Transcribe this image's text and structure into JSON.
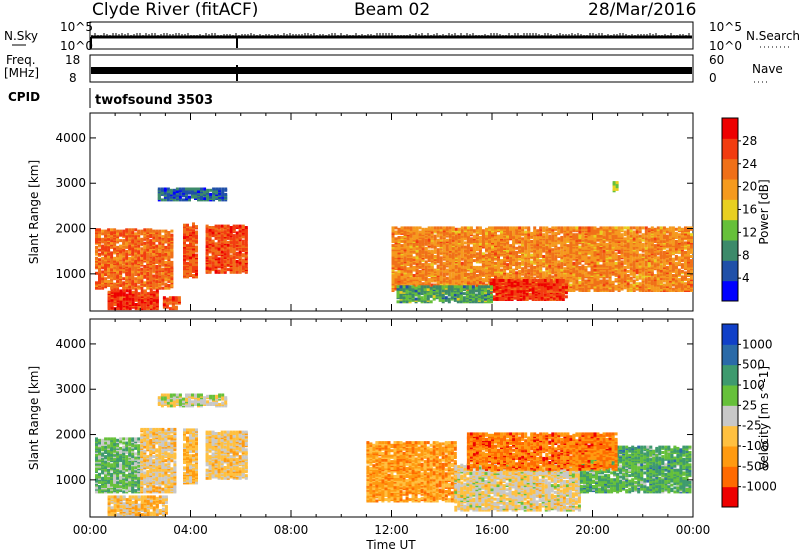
{
  "header": {
    "station": "Clyde River (fitACF)",
    "beam": "Beam 02",
    "date": "28/Mar/2016"
  },
  "strips": {
    "nsky_label": "N.Sky",
    "nsearch_label": "N.Search",
    "left_ticks": [
      "10^5",
      "10^0"
    ],
    "right_ticks": [
      "10^5",
      "10^0"
    ],
    "freq_label": "Freq.",
    "freq_unit": "[MHz]",
    "freq_ticks": [
      "18",
      "8"
    ],
    "nave_label": "Nave",
    "nave_ticks": [
      "60",
      "0"
    ],
    "cpid_label": "CPID",
    "cpid_value": "twofsound 3503"
  },
  "colors": {
    "power": [
      "#0000ff",
      "#2050a8",
      "#3c8a6a",
      "#66c03a",
      "#e8d020",
      "#f59a1e",
      "#f07018",
      "#f23c10",
      "#ee0000"
    ],
    "velocity": [
      "#ee0000",
      "#ff6a00",
      "#ff9a10",
      "#ffc040",
      "#c8c8c8",
      "#66c03a",
      "#3e9a6e",
      "#2a6aa8",
      "#1040c8"
    ]
  },
  "chart_data": [
    {
      "type": "heatmap",
      "name": "Power",
      "xlabel": "",
      "ylabel": "Slant Range [km]",
      "xlim": [
        0,
        24
      ],
      "ylim": [
        180,
        4550
      ],
      "x_ticks": [
        "00:00",
        "04:00",
        "08:00",
        "12:00",
        "16:00",
        "20:00",
        "00:00"
      ],
      "y_ticks": [
        1000,
        2000,
        3000,
        4000
      ],
      "colorbar": {
        "label": "Power [dB]",
        "ticks": [
          "28",
          "24",
          "20",
          "16",
          "12",
          "8",
          "4"
        ],
        "range": [
          0,
          30
        ]
      },
      "regions": [
        {
          "x": [
            0.2,
            3.3
          ],
          "y": [
            650,
            1950
          ],
          "value": 22
        },
        {
          "x": [
            0.7,
            2.7
          ],
          "y": [
            200,
            600
          ],
          "value": 26
        },
        {
          "x": [
            2.9,
            3.6
          ],
          "y": [
            200,
            450
          ],
          "value": 24
        },
        {
          "x": [
            3.7,
            4.3
          ],
          "y": [
            900,
            2100
          ],
          "value": 24
        },
        {
          "x": [
            4.6,
            6.2
          ],
          "y": [
            1000,
            2050
          ],
          "value": 24
        },
        {
          "x": [
            2.7,
            5.4
          ],
          "y": [
            2600,
            2850
          ],
          "value": 6
        },
        {
          "x": [
            12.0,
            23.9
          ],
          "y": [
            600,
            2000
          ],
          "value": 20
        },
        {
          "x": [
            15.9,
            19.0
          ],
          "y": [
            400,
            850
          ],
          "value": 26
        },
        {
          "x": [
            12.2,
            16.0
          ],
          "y": [
            350,
            700
          ],
          "value": 10
        },
        {
          "x": [
            20.8,
            21.0
          ],
          "y": [
            2800,
            3000
          ],
          "value": 14
        }
      ]
    },
    {
      "type": "heatmap",
      "name": "Velocity",
      "xlabel": "Time UT",
      "ylabel": "Slant Range [km]",
      "xlim": [
        0,
        24
      ],
      "ylim": [
        180,
        4550
      ],
      "x_ticks": [
        "00:00",
        "04:00",
        "08:00",
        "12:00",
        "16:00",
        "20:00",
        "00:00"
      ],
      "y_ticks": [
        1000,
        2000,
        3000,
        4000
      ],
      "colorbar": {
        "label": "Velocity [m s^-1]",
        "ticks": [
          "1000",
          "500",
          "100",
          "25",
          "-25",
          "-100",
          "-500",
          "-1000"
        ],
        "range": [
          -1200,
          1200
        ]
      },
      "regions": [
        {
          "x": [
            0.2,
            2.0
          ],
          "y": [
            700,
            1900
          ],
          "value": 300
        },
        {
          "x": [
            2.0,
            3.4
          ],
          "y": [
            700,
            2100
          ],
          "value": -200
        },
        {
          "x": [
            0.7,
            3.0
          ],
          "y": [
            200,
            600
          ],
          "value": -300
        },
        {
          "x": [
            3.7,
            4.3
          ],
          "y": [
            900,
            2100
          ],
          "value": -300
        },
        {
          "x": [
            4.6,
            6.2
          ],
          "y": [
            1000,
            2050
          ],
          "value": -200
        },
        {
          "x": [
            2.7,
            5.4
          ],
          "y": [
            2600,
            2850
          ],
          "value": 0
        },
        {
          "x": [
            11.0,
            14.5
          ],
          "y": [
            500,
            1800
          ],
          "value": -500
        },
        {
          "x": [
            14.5,
            19.5
          ],
          "y": [
            300,
            1300
          ],
          "value": -120
        },
        {
          "x": [
            19.5,
            23.9
          ],
          "y": [
            700,
            1700
          ],
          "value": 400
        },
        {
          "x": [
            15.0,
            21.0
          ],
          "y": [
            1200,
            2000
          ],
          "value": -700
        }
      ]
    }
  ]
}
